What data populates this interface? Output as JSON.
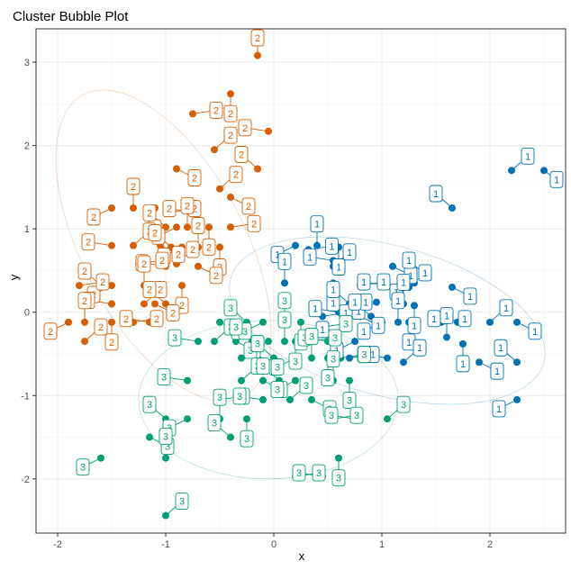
{
  "chart_data": {
    "type": "scatter",
    "title": "Cluster Bubble Plot",
    "xlabel": "x",
    "ylabel": "y",
    "xlim": [
      -2.2,
      2.7
    ],
    "ylim": [
      -2.65,
      3.4
    ],
    "x_ticks": [
      -2,
      -1,
      0,
      1,
      2
    ],
    "y_ticks": [
      -2,
      -1,
      0,
      1,
      2,
      3
    ],
    "x_tick_labels": [
      "-2",
      "-1",
      "0",
      "1",
      "2"
    ],
    "y_tick_labels": [
      "-2",
      "-1",
      "0",
      "1",
      "2",
      "3"
    ],
    "grid": true,
    "legend": "none",
    "colors": {
      "1": "#0072B2",
      "2": "#D55E00",
      "3": "#009E73"
    },
    "ellipses": [
      {
        "cluster": "1",
        "cx": 1.05,
        "cy": -0.1,
        "rx": 1.5,
        "ry": 0.9,
        "angle_deg": 15
      },
      {
        "cluster": "2",
        "cx": -1.02,
        "cy": 0.8,
        "rx": 0.75,
        "ry": 2.05,
        "angle_deg": -28
      },
      {
        "cluster": "3",
        "cx": -0.05,
        "cy": -1.05,
        "rx": 1.2,
        "ry": 0.95,
        "angle_deg": 0
      }
    ],
    "series": [
      {
        "name": "1",
        "points": [
          [
            2.2,
            1.7
          ],
          [
            2.5,
            1.7
          ],
          [
            1.65,
            1.25
          ],
          [
            0.2,
            0.8
          ],
          [
            0.4,
            0.8
          ],
          [
            0.6,
            0.78
          ],
          [
            0.32,
            0.75
          ],
          [
            0.55,
            0.62
          ],
          [
            0.55,
            0.55
          ],
          [
            1.1,
            0.55
          ],
          [
            1.4,
            0.45
          ],
          [
            1.3,
            0.35
          ],
          [
            0.1,
            0.35
          ],
          [
            0.55,
            0.35
          ],
          [
            0.8,
            0.32
          ],
          [
            1.05,
            0.32
          ],
          [
            1.25,
            0.3
          ],
          [
            1.65,
            0.3
          ],
          [
            0.7,
            0.1
          ],
          [
            0.95,
            0.12
          ],
          [
            1.2,
            0.1
          ],
          [
            1.3,
            0.08
          ],
          [
            0.45,
            -0.05
          ],
          [
            0.6,
            0.0
          ],
          [
            0.7,
            -0.05
          ],
          [
            0.8,
            -0.05
          ],
          [
            0.9,
            -0.05
          ],
          [
            1.0,
            -0.12
          ],
          [
            1.15,
            -0.12
          ],
          [
            1.25,
            -0.12
          ],
          [
            1.55,
            -0.12
          ],
          [
            1.7,
            -0.12
          ],
          [
            2.0,
            -0.12
          ],
          [
            2.25,
            -0.12
          ],
          [
            0.6,
            -0.38
          ],
          [
            0.75,
            -0.35
          ],
          [
            1.6,
            -0.3
          ],
          [
            1.75,
            -0.38
          ],
          [
            0.7,
            -0.55
          ],
          [
            1.05,
            -0.55
          ],
          [
            1.2,
            -0.6
          ],
          [
            1.9,
            -0.6
          ],
          [
            2.25,
            -0.6
          ],
          [
            2.25,
            -1.05
          ]
        ]
      },
      {
        "name": "2",
        "points": [
          [
            -0.15,
            3.08
          ],
          [
            -0.4,
            2.62
          ],
          [
            -0.75,
            2.38
          ],
          [
            -0.05,
            2.17
          ],
          [
            -0.55,
            1.95
          ],
          [
            -0.9,
            1.72
          ],
          [
            -0.15,
            1.72
          ],
          [
            -1.5,
            1.25
          ],
          [
            -1.3,
            1.25
          ],
          [
            -1.1,
            1.25
          ],
          [
            -0.95,
            1.2
          ],
          [
            -0.75,
            1.2
          ],
          [
            -0.5,
            1.48
          ],
          [
            -0.4,
            1.38
          ],
          [
            -1.0,
            1.02
          ],
          [
            -0.9,
            1.02
          ],
          [
            -0.8,
            1.02
          ],
          [
            -0.6,
            1.02
          ],
          [
            -0.4,
            1.02
          ],
          [
            -1.5,
            0.8
          ],
          [
            -1.3,
            0.8
          ],
          [
            -1.05,
            0.8
          ],
          [
            -0.95,
            0.78
          ],
          [
            -0.85,
            0.78
          ],
          [
            -0.7,
            0.78
          ],
          [
            -0.5,
            0.78
          ],
          [
            -1.25,
            0.58
          ],
          [
            -1.0,
            0.55
          ],
          [
            -0.9,
            0.58
          ],
          [
            -0.7,
            0.55
          ],
          [
            -1.6,
            0.32
          ],
          [
            -1.5,
            0.32
          ],
          [
            -1.2,
            0.32
          ],
          [
            -0.85,
            0.32
          ],
          [
            -1.8,
            0.32
          ],
          [
            -1.5,
            0.1
          ],
          [
            -1.2,
            0.1
          ],
          [
            -1.1,
            0.1
          ],
          [
            -1.0,
            0.1
          ],
          [
            -1.9,
            -0.12
          ],
          [
            -1.75,
            -0.12
          ],
          [
            -1.5,
            -0.12
          ],
          [
            -1.3,
            -0.12
          ],
          [
            -1.15,
            -0.12
          ],
          [
            -1.75,
            -0.35
          ]
        ]
      },
      {
        "name": "3",
        "points": [
          [
            -0.5,
            -0.12
          ],
          [
            -0.25,
            -0.12
          ],
          [
            -0.1,
            -0.12
          ],
          [
            0.1,
            -0.12
          ],
          [
            0.25,
            -0.12
          ],
          [
            0.45,
            -0.18
          ],
          [
            -0.7,
            -0.35
          ],
          [
            -0.55,
            -0.35
          ],
          [
            -0.35,
            -0.35
          ],
          [
            -0.2,
            -0.35
          ],
          [
            -0.05,
            -0.35
          ],
          [
            0.1,
            -0.35
          ],
          [
            0.2,
            -0.35
          ],
          [
            0.35,
            -0.35
          ],
          [
            0.5,
            -0.35
          ],
          [
            -0.3,
            -0.55
          ],
          [
            -0.15,
            -0.55
          ],
          [
            0.0,
            -0.55
          ],
          [
            0.2,
            -0.55
          ],
          [
            0.35,
            -0.55
          ],
          [
            0.5,
            -0.55
          ],
          [
            0.62,
            -0.55
          ],
          [
            -0.8,
            -0.82
          ],
          [
            -0.3,
            -0.82
          ],
          [
            -0.1,
            -0.82
          ],
          [
            0.05,
            -0.82
          ],
          [
            0.2,
            -0.82
          ],
          [
            0.55,
            -0.82
          ],
          [
            0.7,
            -0.82
          ],
          [
            -0.5,
            -1.05
          ],
          [
            -0.1,
            -1.05
          ],
          [
            0.15,
            -1.05
          ],
          [
            0.35,
            -1.05
          ],
          [
            -1.0,
            -1.28
          ],
          [
            -0.8,
            -1.28
          ],
          [
            -0.5,
            -1.28
          ],
          [
            -0.25,
            -1.28
          ],
          [
            0.55,
            -1.28
          ],
          [
            0.75,
            -1.28
          ],
          [
            1.05,
            -1.28
          ],
          [
            -1.15,
            -1.5
          ],
          [
            -0.4,
            -1.5
          ],
          [
            -1.6,
            -1.75
          ],
          [
            -1.0,
            -1.75
          ],
          [
            0.6,
            -1.75
          ],
          [
            0.2,
            -1.97
          ],
          [
            0.45,
            -1.97
          ],
          [
            -1.0,
            -2.44
          ]
        ]
      }
    ]
  }
}
